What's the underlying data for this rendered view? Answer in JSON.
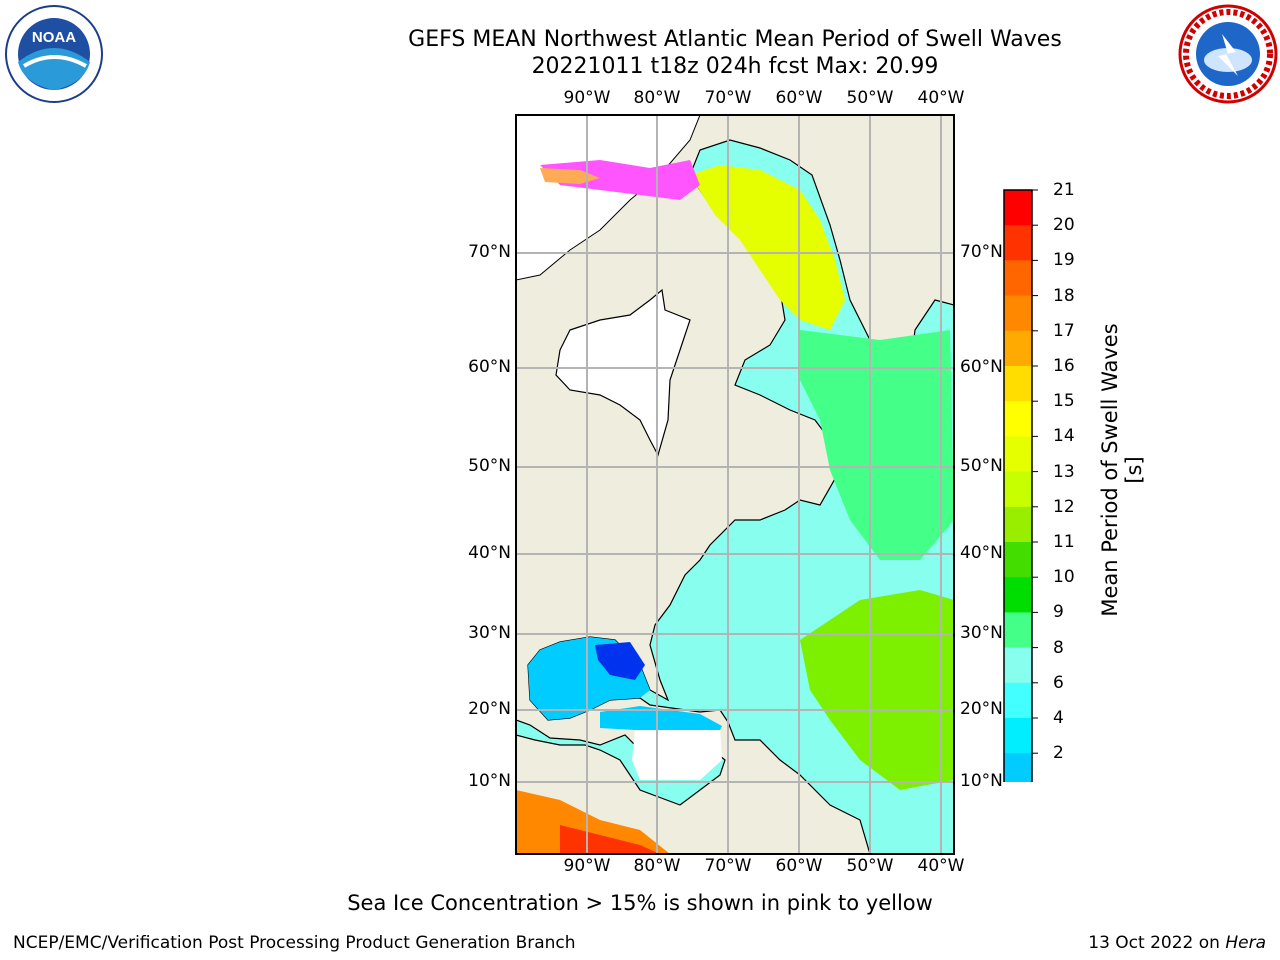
{
  "title": {
    "line1": "GEFS MEAN Northwest Atlantic Mean Period of Swell Waves",
    "line2": "20221011 t18z 024h fcst   Max: 20.99"
  },
  "logos": {
    "noaa": {
      "text": "NOAA",
      "ring_text": "NATIONAL OCEANIC AND ATMOSPHERIC ADMINISTRATION · U.S. DEPARTMENT OF COMMERCE"
    },
    "nws": {
      "ring_text": "NATIONAL WEATHER SERVICE"
    }
  },
  "map": {
    "lon_labels_top": [
      "90°W",
      "80°W",
      "70°W",
      "60°W",
      "50°W",
      "40°W"
    ],
    "lon_labels_bottom": [
      "90°W",
      "80°W",
      "70°W",
      "60°W",
      "50°W",
      "40°W"
    ],
    "lat_labels_left": [
      "70°N",
      "60°N",
      "50°N",
      "40°N",
      "30°N",
      "20°N",
      "10°N"
    ],
    "lat_labels_right": [
      "70°N",
      "60°N",
      "50°N",
      "40°N",
      "30°N",
      "20°N",
      "10°N"
    ],
    "land_color": "#efedde",
    "grid_color": "#b4b4b4"
  },
  "colorbar": {
    "label": "Mean Period of Swell Waves [s]",
    "ticks": [
      "21",
      "20",
      "19",
      "18",
      "17",
      "16",
      "15",
      "14",
      "13",
      "12",
      "11",
      "10",
      "9",
      "8",
      "6",
      "4",
      "2"
    ],
    "colors": [
      "#ff0000",
      "#ff3300",
      "#ff6600",
      "#ff8800",
      "#ffaa00",
      "#ffdd00",
      "#ffff00",
      "#e6ff00",
      "#c8ff00",
      "#99ee00",
      "#44dd00",
      "#00dd00",
      "#44ff88",
      "#88ffee",
      "#44ffff",
      "#00eeff",
      "#00ccff",
      "#0066ff"
    ],
    "extend_color": "#0000ff"
  },
  "note": "Sea Ice Concentration > 15% is shown in pink to yellow",
  "footer": {
    "left": "NCEP/EMC/Verification Post Processing Product Generation Branch",
    "right_prefix": "13 Oct 2022 on ",
    "right_host": "Hera"
  }
}
